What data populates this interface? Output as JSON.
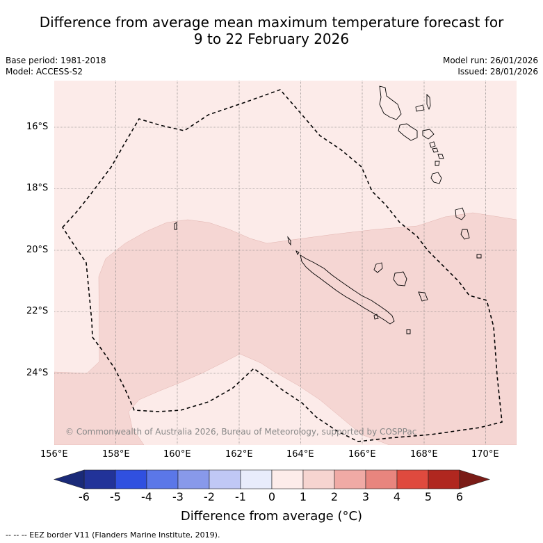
{
  "title": {
    "line1": "Difference from average mean maximum temperature forecast for",
    "line2": "9 to 22 February 2026"
  },
  "meta": {
    "base_period": "Base period: 1981-2018",
    "model": "Model: ACCESS-S2",
    "model_run": "Model run: 26/01/2026",
    "issued": "Issued: 28/01/2026"
  },
  "map": {
    "lat_labels": [
      "16°S",
      "18°S",
      "20°S",
      "22°S",
      "24°S"
    ],
    "lon_labels": [
      "156°E",
      "158°E",
      "160°E",
      "162°E",
      "164°E",
      "166°E",
      "168°E",
      "170°E"
    ],
    "copyright": "© Commonwealth of Australia 2026, Bureau of Meteorology, supported by COSPPac",
    "colors": {
      "bin_0_1": "#fcebe9",
      "bin_1_2": "#f5d6d3",
      "grid": "#777777"
    }
  },
  "colorbar": {
    "ticks": [
      "-6",
      "-5",
      "-4",
      "-3",
      "-2",
      "-1",
      "0",
      "1",
      "2",
      "3",
      "4",
      "5",
      "6"
    ],
    "colors": [
      "#223399",
      "#3050e0",
      "#5b77e8",
      "#8899ea",
      "#c0c8f5",
      "#e8ecfb",
      "#fdecea",
      "#f6d4d0",
      "#f0aaa5",
      "#e8857e",
      "#df4a3e",
      "#b0271f"
    ],
    "low_extend_color": "#1a2a78",
    "high_extend_color": "#7a1c17",
    "label": "Difference from average (°C)"
  },
  "footer": "--  --  -- EEZ border V11 (Flanders Marine Institute, 2019)."
}
